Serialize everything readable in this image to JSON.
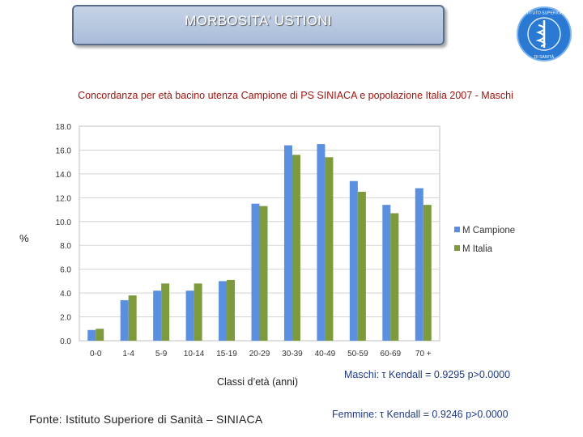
{
  "header": {
    "title": "MORBOSITA’ USTIONI"
  },
  "logo": {
    "name": "iss-logo",
    "text": "ISTITUTO SUPERIORE DI SANITÀ",
    "color": "#2a7ad4"
  },
  "chart_data": {
    "type": "bar",
    "title": "Concordanza per età bacino utenza Campione di PS SINIACA e popolazione Italia 2007 - Maschi",
    "xlabel": "Classi d’età (anni)",
    "ylabel": "%",
    "ylim": [
      0,
      18
    ],
    "yticks": [
      "0.0",
      "2.0",
      "4.0",
      "6.0",
      "8.0",
      "10.0",
      "12.0",
      "14.0",
      "16.0",
      "18.0"
    ],
    "grid": true,
    "legend_position": "right",
    "categories": [
      "0-0",
      "1-4",
      "5-9",
      "10-14",
      "15-19",
      "20-29",
      "30-39",
      "40-49",
      "50-59",
      "60-69",
      "70 +"
    ],
    "series": [
      {
        "name": "M Campione",
        "color": "#5b8fe0",
        "values": [
          0.9,
          3.4,
          4.2,
          4.2,
          5.0,
          11.5,
          16.4,
          16.5,
          13.4,
          11.4,
          12.8
        ]
      },
      {
        "name": "M Italia",
        "color": "#7d9a3c",
        "values": [
          1.0,
          3.8,
          4.8,
          4.8,
          5.1,
          11.3,
          15.6,
          15.4,
          12.5,
          10.7,
          11.4
        ]
      }
    ]
  },
  "stats": {
    "males": "Maschi: τ Kendall = 0.9295 p>0.0000",
    "females": "Femmine: τ Kendall = 0.9246 p>0.0000"
  },
  "footer": {
    "source": "Fonte: Istituto Superiore di Sanità – SINIACA"
  }
}
